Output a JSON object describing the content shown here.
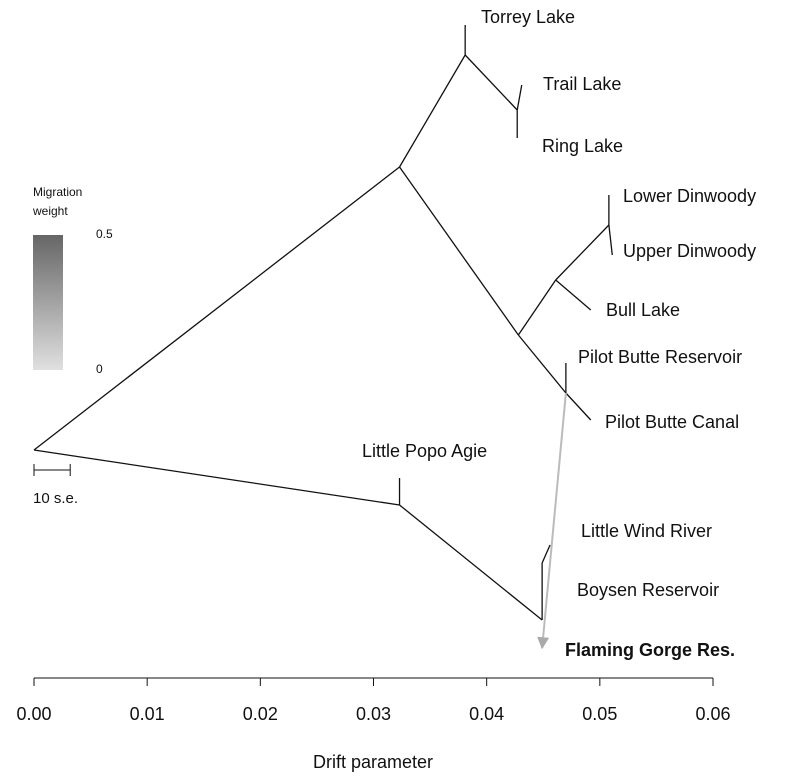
{
  "chart_data": {
    "type": "tree",
    "xlabel": "Drift parameter",
    "xlim": [
      0,
      0.06
    ],
    "xticks": [
      {
        "value": 0,
        "label": "0.00"
      },
      {
        "value": 0.01,
        "label": "0.01"
      },
      {
        "value": 0.02,
        "label": "0.02"
      },
      {
        "value": 0.03,
        "label": "0.03"
      },
      {
        "value": 0.04,
        "label": "0.04"
      },
      {
        "value": 0.05,
        "label": "0.05"
      },
      {
        "value": 0.06,
        "label": "0.06"
      }
    ],
    "nodes": [
      {
        "x": 0,
        "parent": null
      },
      {
        "x": 0.0323,
        "parent": 0
      },
      {
        "x": 0.0381,
        "parent": 1
      },
      {
        "x": 0.0381,
        "parent": 2,
        "label": "Torrey Lake"
      },
      {
        "x": 0.0427,
        "parent": 2
      },
      {
        "x": 0.0431,
        "parent": 4,
        "label": "Trail Lake"
      },
      {
        "x": 0.0427,
        "parent": 4,
        "label": "Ring Lake"
      },
      {
        "x": 0.0428,
        "parent": 1
      },
      {
        "x": 0.0461,
        "parent": 7
      },
      {
        "x": 0.0508,
        "parent": 8
      },
      {
        "x": 0.0508,
        "parent": 9,
        "label": "Lower Dinwoody"
      },
      {
        "x": 0.0511,
        "parent": 9,
        "label": "Upper Dinwoody"
      },
      {
        "x": 0.0492,
        "parent": 8,
        "label": "Bull Lake"
      },
      {
        "x": 0.047,
        "parent": 7
      },
      {
        "x": 0.047,
        "parent": 13,
        "label": "Pilot Butte Reservoir"
      },
      {
        "x": 0.0492,
        "parent": 13,
        "label": "Pilot Butte Canal"
      },
      {
        "x": 0.0323,
        "parent": 0
      },
      {
        "x": 0.0323,
        "parent": 16,
        "label": "Little Popo Agie"
      },
      {
        "x": 0.0449,
        "parent": 16
      },
      {
        "x": 0.0449,
        "parent": 18
      },
      {
        "x": 0.0456,
        "parent": 19,
        "label": "Little Wind River"
      },
      {
        "x": 0.0449,
        "parent": 19,
        "label": "Boysen Reservoir"
      },
      {
        "x": 0.0449,
        "parent": 18,
        "label": "Flaming Gorge Res.",
        "bold": true
      }
    ],
    "migrations": [
      {
        "from": 13,
        "to": 22,
        "weight": 0.15
      }
    ],
    "migration_legend": {
      "title": "Migration weight",
      "ticks": [
        0,
        0.5
      ]
    },
    "scale_bar": {
      "label": "10 s.e.",
      "length": 0.0032
    }
  }
}
